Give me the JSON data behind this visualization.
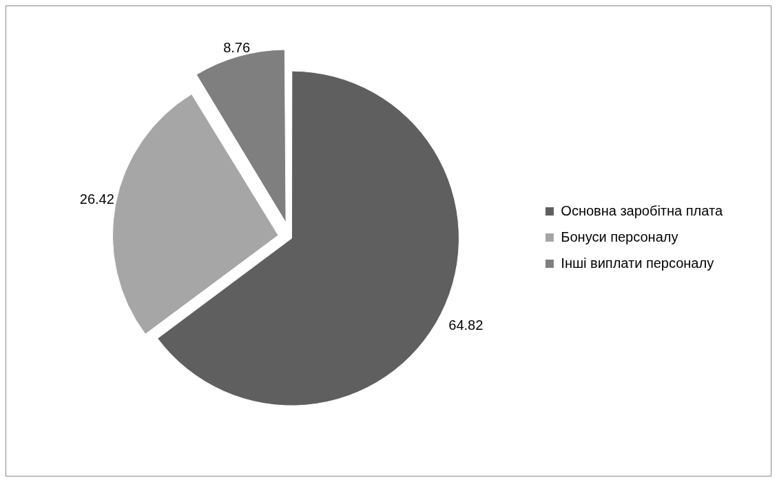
{
  "chart_data": {
    "type": "pie",
    "categories": [
      "Основна заробітна плата",
      "Бонуси персоналу",
      "Інші виплати персоналу"
    ],
    "values": [
      64.82,
      26.42,
      8.76
    ],
    "colors": [
      "#5f5f5f",
      "#a6a6a6",
      "#7f7f7f"
    ],
    "data_labels": true,
    "legend": "right"
  }
}
